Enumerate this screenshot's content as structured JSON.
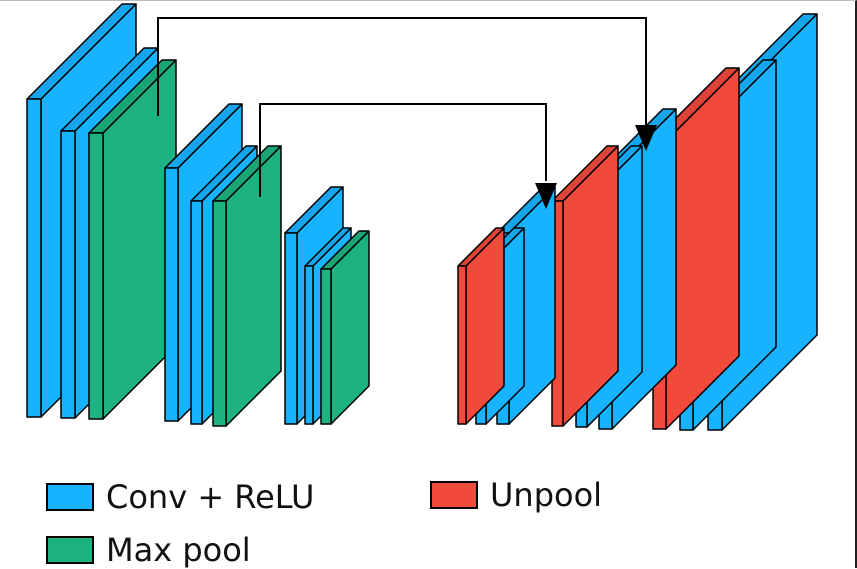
{
  "colors": {
    "conv": "#17b3ff",
    "pool": "#1db281",
    "unpool": "#ef4a3c",
    "outline": "#000000"
  },
  "blocks": [
    {
      "type": "conv",
      "name": "enc1-conv1"
    },
    {
      "type": "conv",
      "name": "enc1-conv2"
    },
    {
      "type": "pool",
      "name": "enc1-pool"
    },
    {
      "type": "conv",
      "name": "enc2-conv1"
    },
    {
      "type": "conv",
      "name": "enc2-conv2"
    },
    {
      "type": "pool",
      "name": "enc2-pool"
    },
    {
      "type": "conv",
      "name": "enc3-conv1"
    },
    {
      "type": "conv",
      "name": "enc3-conv2"
    },
    {
      "type": "pool",
      "name": "enc3-pool"
    },
    {
      "type": "unpool",
      "name": "dec1-unpool"
    },
    {
      "type": "conv",
      "name": "dec1-conv1"
    },
    {
      "type": "conv",
      "name": "dec1-conv2"
    },
    {
      "type": "unpool",
      "name": "dec2-unpool"
    },
    {
      "type": "conv",
      "name": "dec2-conv1"
    },
    {
      "type": "conv",
      "name": "dec2-conv2"
    },
    {
      "type": "unpool",
      "name": "dec3-unpool"
    },
    {
      "type": "conv",
      "name": "dec3-conv1"
    },
    {
      "type": "conv",
      "name": "dec3-conv2"
    }
  ],
  "skip_connections": [
    {
      "from": "enc1-pool",
      "to": "dec3-unpool"
    },
    {
      "from": "enc2-pool",
      "to": "dec2-unpool"
    }
  ],
  "legend": [
    {
      "key": "conv",
      "label": "Conv + ReLU"
    },
    {
      "key": "unpool",
      "label": "Unpool"
    },
    {
      "key": "pool",
      "label": "Max pool"
    }
  ]
}
